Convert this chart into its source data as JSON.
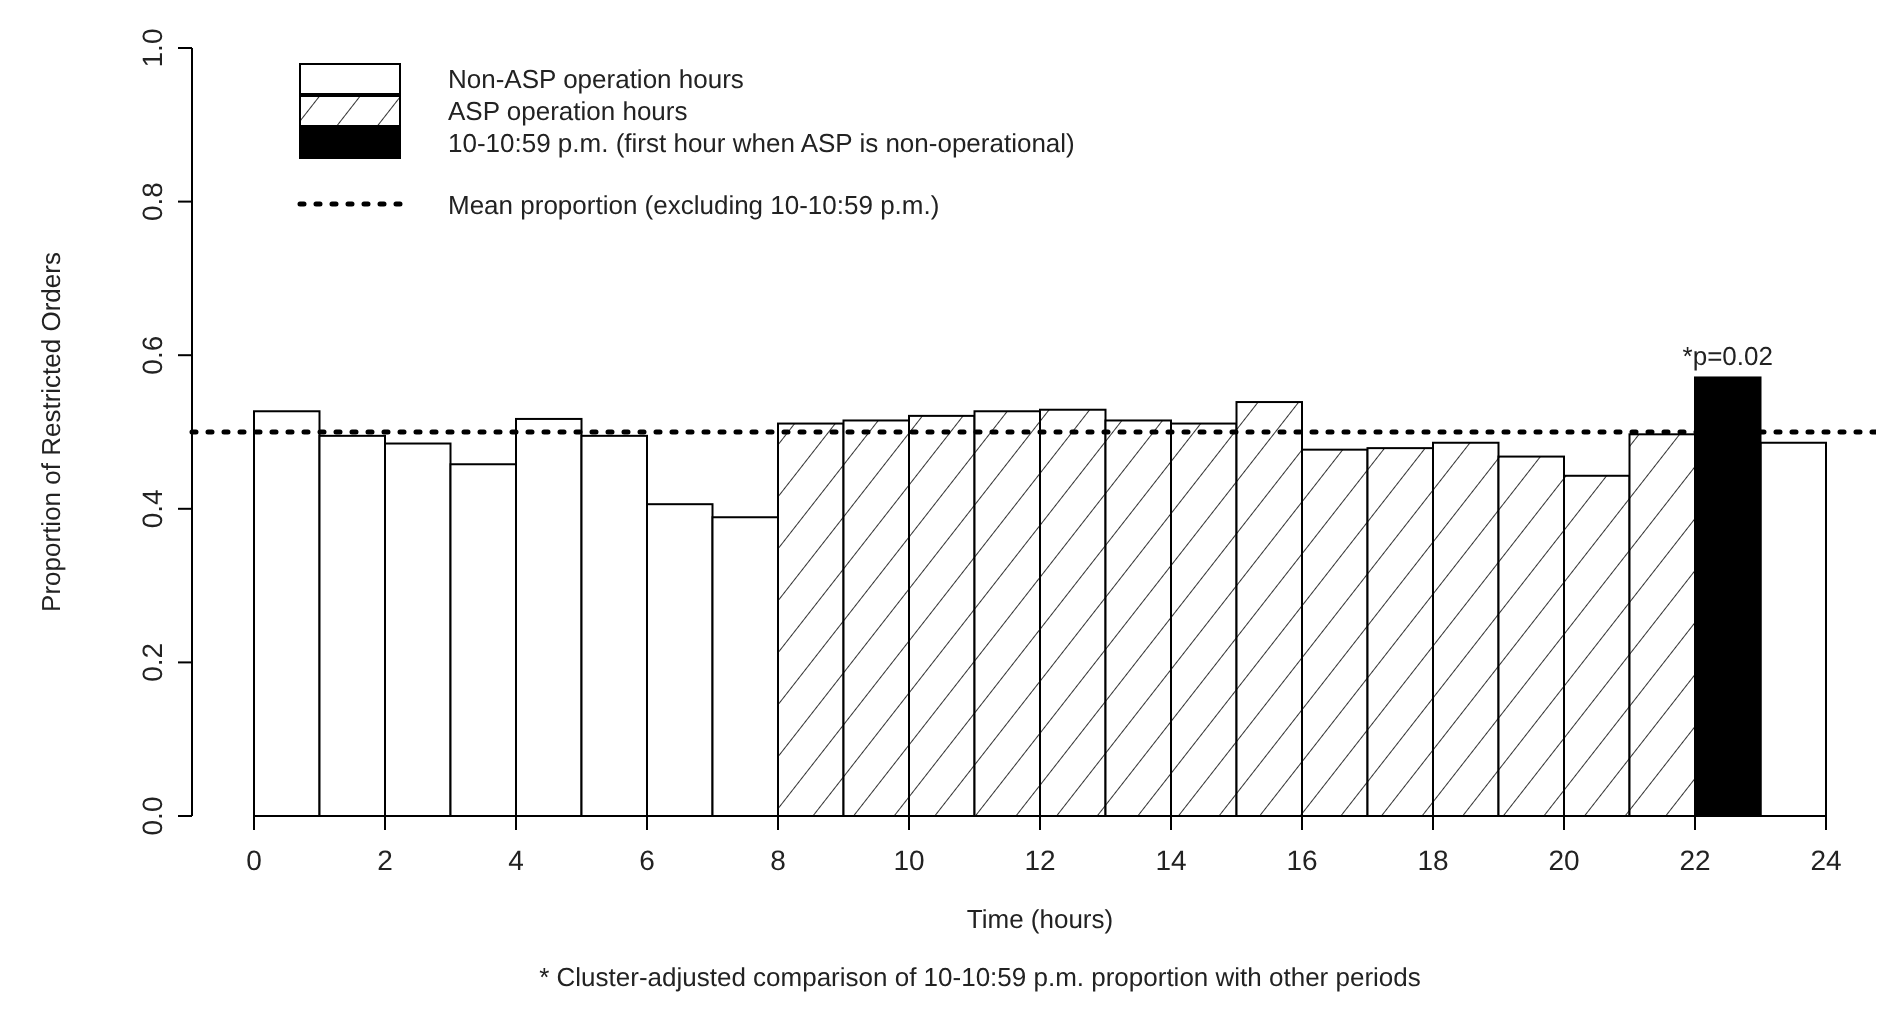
{
  "chart_data": {
    "type": "bar",
    "xlabel": "Time (hours)",
    "ylabel": "Proportion of Restricted Orders",
    "xlim": [
      0,
      24
    ],
    "xticks": [
      0,
      2,
      4,
      6,
      8,
      10,
      12,
      14,
      16,
      18,
      20,
      22,
      24
    ],
    "ylim": [
      0,
      1
    ],
    "yticks": [
      {
        "value": 0,
        "label": "0.0"
      },
      {
        "value": 0.2,
        "label": "0.2"
      },
      {
        "value": 0.4,
        "label": "0.4"
      },
      {
        "value": 0.6,
        "label": "0.6"
      },
      {
        "value": 0.8,
        "label": "0.8"
      },
      {
        "value": 1,
        "label": "1.0"
      }
    ],
    "series": [
      {
        "name": "Non-ASP operation hours",
        "color": "#ffffff",
        "x": [
          0.5,
          1.5,
          2.5,
          3.5,
          4.5,
          5.5,
          6.5,
          7.5,
          23.5
        ],
        "values": [
          0.527,
          0.495,
          0.485,
          0.458,
          0.517,
          0.495,
          0.406,
          0.389,
          0.486
        ]
      },
      {
        "name": "ASP operation hours",
        "color": "#000000",
        "x": [
          8.5,
          9.5,
          10.5,
          11.5,
          12.5,
          13.5,
          14.5,
          15.5,
          16.5,
          17.5,
          18.5,
          19.5,
          20.5,
          21.5
        ],
        "values": [
          0.511,
          0.515,
          0.521,
          0.527,
          0.529,
          0.515,
          0.511,
          0.539,
          0.477,
          0.479,
          0.486,
          0.468,
          0.443,
          0.497
        ]
      },
      {
        "name": "10-10:59 p.m. (first hour when ASP is non-operational)",
        "color": "#000000",
        "x": [
          22.5
        ],
        "values": [
          0.571
        ]
      }
    ],
    "ref_lines": [
      {
        "axis": "y",
        "value": 0.5,
        "line_style": "dotted",
        "color": "#000000"
      }
    ],
    "annotations": [
      {
        "text": "*p=0.02",
        "x": 22.5,
        "y": 0.571
      },
      "Mean proportion (excluding 10-10:59 p.m.)",
      "* Cluster-adjusted comparison of 10-10:59 p.m. proportion with other periods"
    ],
    "legend": "top left"
  }
}
